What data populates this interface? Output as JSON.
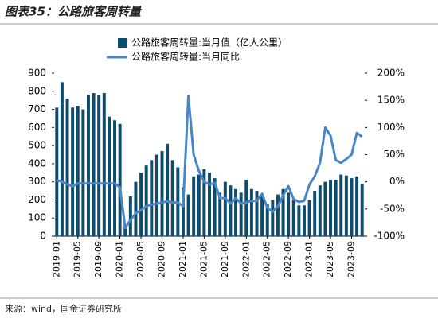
{
  "chart_data": {
    "type": "bar-line",
    "title": "图表35：公路旅客周转量",
    "source": "来源：wind，国金证券研究所",
    "categories": [
      "2019-01",
      null,
      null,
      null,
      "2019-05",
      null,
      null,
      null,
      "2019-09",
      null,
      null,
      null,
      "2020-01",
      null,
      null,
      null,
      "2020-05",
      null,
      null,
      null,
      "2020-09",
      null,
      null,
      null,
      "2021-01",
      null,
      null,
      null,
      "2021-05",
      null,
      null,
      null,
      "2021-09",
      null,
      null,
      null,
      "2022-01",
      null,
      null,
      null,
      "2022-05",
      null,
      null,
      null,
      "2022-09",
      null,
      null,
      null,
      "2023-01",
      null,
      null,
      null,
      "2023-05",
      null,
      null,
      null,
      "2023-09",
      null,
      null
    ],
    "series": [
      {
        "name": "公路旅客周转量:当月值（亿人公里）",
        "color": "#0f4c6c",
        "values": [
          710,
          850,
          760,
          710,
          720,
          700,
          780,
          790,
          780,
          790,
          660,
          640,
          620,
          60,
          220,
          300,
          350,
          390,
          420,
          450,
          470,
          510,
          420,
          380,
          270,
          230,
          330,
          340,
          370,
          350,
          320,
          240,
          300,
          280,
          260,
          240,
          310,
          260,
          250,
          220,
          180,
          200,
          230,
          260,
          240,
          200,
          170,
          170,
          200,
          250,
          280,
          300,
          310,
          310,
          340,
          335,
          320,
          330,
          290
        ]
      },
      {
        "name": "公路旅客周转量:当月同比",
        "color": "#4a86c5",
        "axis": "y2",
        "values": [
          3,
          0,
          -5,
          -8,
          -3,
          -3,
          -3,
          -3,
          -3,
          -3,
          -3,
          -3,
          -10,
          -85,
          -70,
          -58,
          -52,
          -45,
          -42,
          -40,
          -38,
          -36,
          -38,
          -38,
          -45,
          158,
          50,
          20,
          0,
          -5,
          -2,
          -30,
          -30,
          -40,
          -30,
          -40,
          -38,
          -35,
          -35,
          -22,
          -48,
          -55,
          -45,
          -25,
          -8,
          -32,
          -37,
          -35,
          -5,
          10,
          35,
          100,
          85,
          40,
          35,
          42,
          50,
          90,
          83
        ]
      }
    ],
    "ylim": [
      0,
      900
    ],
    "yticks": [
      0,
      100,
      200,
      300,
      400,
      500,
      600,
      700,
      800,
      900
    ],
    "y2lim": [
      -100,
      200
    ],
    "y2ticks": [
      {
        "value": -100,
        "label": "-100%"
      },
      {
        "value": -50,
        "label": "-50%"
      },
      {
        "value": 0,
        "label": "0%"
      },
      {
        "value": 50,
        "label": "50%"
      },
      {
        "value": 100,
        "label": "100%"
      },
      {
        "value": 150,
        "label": "150%"
      },
      {
        "value": 200,
        "label": "200%"
      }
    ],
    "grid": false
  }
}
